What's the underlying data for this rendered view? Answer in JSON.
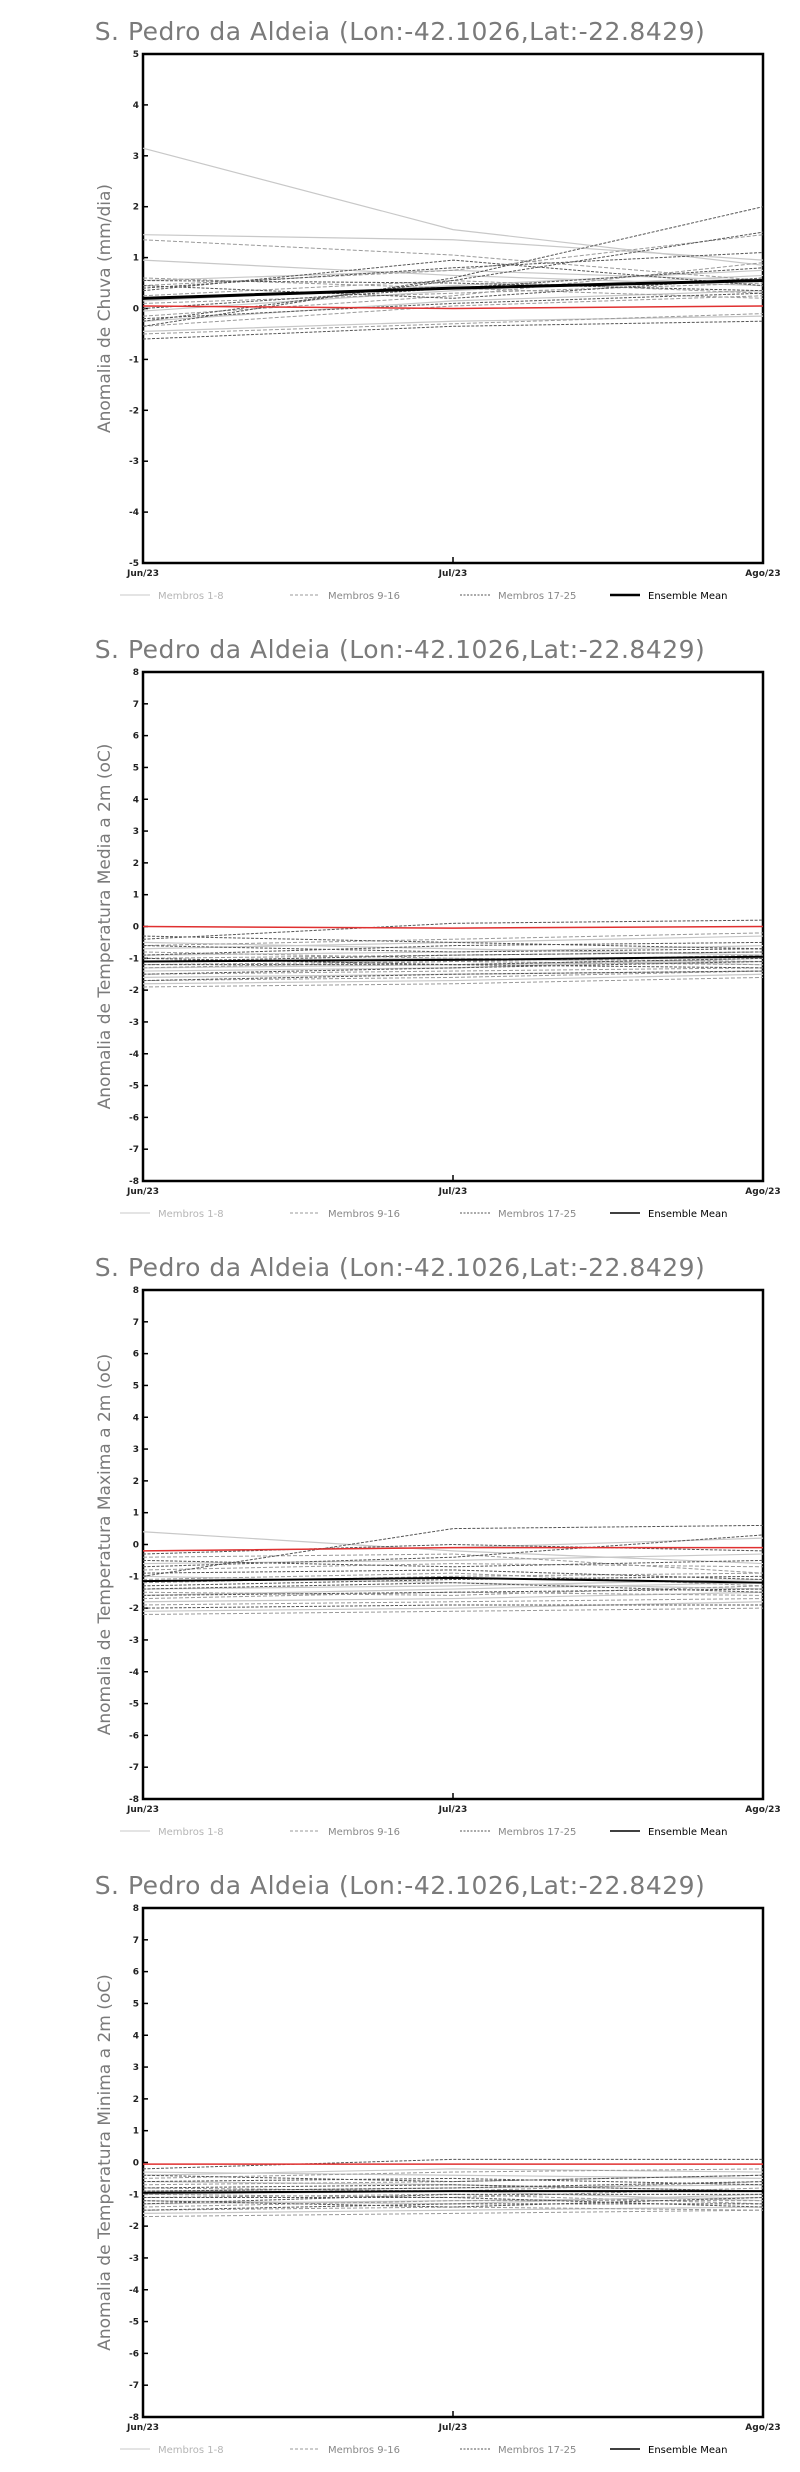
{
  "chart_data": [
    {
      "type": "line",
      "title": "S. Pedro da Aldeia (Lon:-42.1026,Lat:-22.8429)",
      "ylabel": "Anomalia de Chuva (mm/dia)",
      "x": [
        "Jun/23",
        "Jul/23",
        "Ago/23"
      ],
      "ylim": [
        -5,
        5
      ],
      "yticks": [
        "-5",
        "-4",
        "-3",
        "-2",
        "-1",
        "0",
        "1",
        "2",
        "3",
        "4",
        "5"
      ],
      "legend": [
        "Membros 1-8",
        "Membros 9-16",
        "Membros 17-25",
        "Ensemble Mean"
      ],
      "members_1_8": [
        [
          3.15,
          1.55,
          0.85
        ],
        [
          1.45,
          1.35,
          0.95
        ],
        [
          0.55,
          0.75,
          0.55
        ],
        [
          0.15,
          0.45,
          0.75
        ],
        [
          -0.25,
          0.15,
          0.35
        ],
        [
          -0.45,
          -0.25,
          -0.15
        ],
        [
          0.95,
          0.65,
          0.45
        ],
        [
          -0.05,
          0.35,
          0.65
        ]
      ],
      "members_9_16": [
        [
          1.35,
          1.05,
          0.55
        ],
        [
          0.45,
          0.75,
          1.45
        ],
        [
          0.1,
          0.3,
          0.5
        ],
        [
          -0.35,
          0.05,
          0.25
        ],
        [
          0.6,
          0.4,
          0.2
        ],
        [
          -0.15,
          0.25,
          0.9
        ],
        [
          0.25,
          0.55,
          0.3
        ],
        [
          -0.5,
          -0.3,
          -0.1
        ]
      ],
      "members_17_25": [
        [
          -0.35,
          0.6,
          2.0
        ],
        [
          -0.25,
          0.55,
          1.5
        ],
        [
          0.4,
          0.8,
          1.1
        ],
        [
          0.55,
          0.5,
          0.35
        ],
        [
          -0.6,
          -0.35,
          -0.25
        ],
        [
          0.0,
          0.4,
          0.8
        ],
        [
          0.35,
          0.95,
          0.45
        ],
        [
          -0.2,
          0.1,
          0.3
        ],
        [
          0.45,
          0.2,
          0.6
        ]
      ],
      "ensemble_mean": [
        0.2,
        0.4,
        0.55
      ],
      "observed": [
        0.05,
        0.0,
        0.05
      ]
    },
    {
      "type": "line",
      "title": "S. Pedro da Aldeia (Lon:-42.1026,Lat:-22.8429)",
      "ylabel": "Anomalia de Temperatura Media a 2m (oC)",
      "x": [
        "Jun/23",
        "Jul/23",
        "Ago/23"
      ],
      "ylim": [
        -8,
        8
      ],
      "yticks": [
        "-8",
        "-7",
        "-6",
        "-5",
        "-4",
        "-3",
        "-2",
        "-1",
        "0",
        "1",
        "2",
        "3",
        "4",
        "5",
        "6",
        "7",
        "8"
      ],
      "legend": [
        "Membros 1-8",
        "Membros 9-16",
        "Membros 17-25",
        "Ensemble Mean"
      ],
      "members_1_8": [
        [
          -0.9,
          -0.8,
          -0.6
        ],
        [
          -1.3,
          -1.2,
          -1.1
        ],
        [
          -1.6,
          -1.5,
          -1.4
        ],
        [
          -0.5,
          -0.7,
          -0.9
        ],
        [
          -1.1,
          -1.0,
          -1.2
        ],
        [
          -1.8,
          -1.7,
          -1.5
        ],
        [
          -0.7,
          -0.5,
          -0.3
        ],
        [
          -1.4,
          -1.3,
          -1.0
        ]
      ],
      "members_9_16": [
        [
          -1.0,
          -0.9,
          -0.8
        ],
        [
          -1.5,
          -1.4,
          -1.3
        ],
        [
          -0.6,
          -0.4,
          -0.2
        ],
        [
          -1.2,
          -1.1,
          -0.9
        ],
        [
          -1.7,
          -1.6,
          -1.4
        ],
        [
          -0.8,
          -1.0,
          -1.1
        ],
        [
          -1.3,
          -1.1,
          -1.2
        ],
        [
          -1.9,
          -1.8,
          -1.6
        ]
      ],
      "members_17_25": [
        [
          -0.4,
          0.1,
          0.2
        ],
        [
          -0.9,
          -0.6,
          -0.5
        ],
        [
          -1.2,
          -1.2,
          -1.3
        ],
        [
          -1.5,
          -1.3,
          -1.1
        ],
        [
          -0.6,
          -0.8,
          -0.7
        ],
        [
          -1.1,
          -0.9,
          -0.8
        ],
        [
          -1.7,
          -1.5,
          -1.4
        ],
        [
          -0.3,
          -0.5,
          -0.7
        ],
        [
          -1.0,
          -1.2,
          -1.0
        ]
      ],
      "ensemble_mean": [
        -1.1,
        -1.05,
        -0.95
      ],
      "observed": [
        0.0,
        -0.05,
        0.0
      ]
    },
    {
      "type": "line",
      "title": "S. Pedro da Aldeia (Lon:-42.1026,Lat:-22.8429)",
      "ylabel": "Anomalia de Temperatura Maxima a 2m (oC)",
      "x": [
        "Jun/23",
        "Jul/23",
        "Ago/23"
      ],
      "ylim": [
        -8,
        8
      ],
      "yticks": [
        "-8",
        "-7",
        "-6",
        "-5",
        "-4",
        "-3",
        "-2",
        "-1",
        "0",
        "1",
        "2",
        "3",
        "4",
        "5",
        "6",
        "7",
        "8"
      ],
      "legend": [
        "Membros 1-8",
        "Membros 9-16",
        "Membros 17-25",
        "Ensemble Mean"
      ],
      "members_1_8": [
        [
          0.4,
          -0.2,
          -0.6
        ],
        [
          -1.4,
          -1.3,
          -1.1
        ],
        [
          -1.8,
          -1.7,
          -1.5
        ],
        [
          -0.6,
          -0.5,
          -0.3
        ],
        [
          -2.1,
          -2.0,
          -1.8
        ],
        [
          -1.0,
          -1.2,
          -1.4
        ],
        [
          -1.6,
          -1.4,
          -1.2
        ],
        [
          -0.2,
          -0.1,
          0.2
        ]
      ],
      "members_9_16": [
        [
          -1.2,
          -1.0,
          -0.9
        ],
        [
          -1.9,
          -1.8,
          -1.7
        ],
        [
          -0.8,
          -0.6,
          -0.7
        ],
        [
          -1.5,
          -1.6,
          -1.3
        ],
        [
          -2.2,
          -2.1,
          -2.0
        ],
        [
          -0.4,
          -0.3,
          -0.9
        ],
        [
          -1.1,
          -0.9,
          -1.3
        ],
        [
          -1.7,
          -1.5,
          -1.6
        ]
      ],
      "members_17_25": [
        [
          -1.0,
          0.5,
          0.6
        ],
        [
          -0.7,
          -0.4,
          0.3
        ],
        [
          -1.3,
          -1.1,
          -1.0
        ],
        [
          -1.6,
          -1.5,
          -1.4
        ],
        [
          -0.5,
          -0.7,
          -0.5
        ],
        [
          -2.0,
          -1.9,
          -1.9
        ],
        [
          -1.4,
          -1.2,
          -1.5
        ],
        [
          -0.9,
          -0.8,
          -1.1
        ],
        [
          -0.3,
          0.0,
          -0.2
        ]
      ],
      "ensemble_mean": [
        -1.15,
        -1.05,
        -1.2
      ],
      "observed": [
        -0.2,
        -0.1,
        -0.1
      ]
    },
    {
      "type": "line",
      "title": "S. Pedro da Aldeia (Lon:-42.1026,Lat:-22.8429)",
      "ylabel": "Anomalia de Temperatura Minima a 2m (oC)",
      "x": [
        "Jun/23",
        "Jul/23",
        "Ago/23"
      ],
      "ylim": [
        -8,
        8
      ],
      "yticks": [
        "-8",
        "-7",
        "-6",
        "-5",
        "-4",
        "-3",
        "-2",
        "-1",
        "0",
        "1",
        "2",
        "3",
        "4",
        "5",
        "6",
        "7",
        "8"
      ],
      "legend": [
        "Membros 1-8",
        "Membros 9-16",
        "Membros 17-25",
        "Ensemble Mean"
      ],
      "members_1_8": [
        [
          -0.3,
          -0.4,
          -0.5
        ],
        [
          -0.9,
          -0.8,
          -0.7
        ],
        [
          -1.3,
          -1.2,
          -1.1
        ],
        [
          -0.6,
          -0.7,
          -0.9
        ],
        [
          -1.6,
          -1.5,
          -1.4
        ],
        [
          -1.0,
          -0.9,
          -1.2
        ],
        [
          -0.4,
          -0.2,
          -0.3
        ],
        [
          -1.2,
          -1.3,
          -1.0
        ]
      ],
      "members_9_16": [
        [
          -0.7,
          -0.6,
          -0.4
        ],
        [
          -1.1,
          -1.0,
          -1.3
        ],
        [
          -1.5,
          -1.4,
          -1.5
        ],
        [
          -0.5,
          -0.3,
          -0.2
        ],
        [
          -0.8,
          -0.9,
          -0.6
        ],
        [
          -1.4,
          -1.2,
          -1.2
        ],
        [
          -1.0,
          -1.1,
          -0.8
        ],
        [
          -1.7,
          -1.6,
          -1.5
        ]
      ],
      "members_17_25": [
        [
          -0.2,
          0.1,
          0.1
        ],
        [
          -0.8,
          -0.7,
          -0.9
        ],
        [
          -1.1,
          -1.1,
          -1.4
        ],
        [
          -1.3,
          -1.0,
          -1.0
        ],
        [
          -0.6,
          -0.5,
          -0.7
        ],
        [
          -1.5,
          -1.3,
          -1.3
        ],
        [
          -0.9,
          -0.8,
          -0.6
        ],
        [
          -0.4,
          -0.6,
          -0.4
        ],
        [
          -1.2,
          -1.4,
          -1.1
        ]
      ],
      "ensemble_mean": [
        -0.95,
        -0.9,
        -0.9
      ],
      "observed": [
        -0.05,
        -0.05,
        -0.05
      ]
    }
  ],
  "colors": {
    "members_1_8": "#c8c8c8",
    "members_9_16": "#9a9a9a",
    "members_17_25": "#555555",
    "ensemble_mean": "#000000",
    "observed": "#e03030",
    "title": "#7a7a7a"
  }
}
